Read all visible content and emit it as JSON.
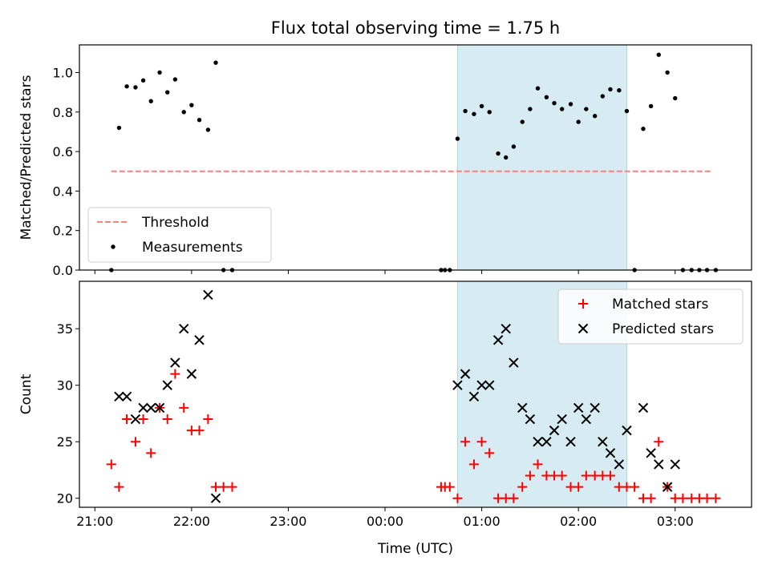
{
  "chart_data": {
    "title": "Flux total observing time = 1.75 h",
    "x_axis": {
      "label": "Time (UTC)",
      "unit": "hours after 21:00 UTC",
      "range": [
        -0.16,
        6.79
      ],
      "ticks": [
        {
          "value": 0,
          "label": "21:00"
        },
        {
          "value": 1,
          "label": "22:00"
        },
        {
          "value": 2,
          "label": "23:00"
        },
        {
          "value": 3,
          "label": "00:00"
        },
        {
          "value": 4,
          "label": "01:00"
        },
        {
          "value": 5,
          "label": "02:00"
        },
        {
          "value": 6,
          "label": "03:00"
        }
      ]
    },
    "shaded_interval": {
      "x": [
        3.75,
        5.5
      ],
      "color": "#add8e6"
    },
    "panels": [
      {
        "type": "scatter",
        "ylabel": "Matched/Predicted stars",
        "ylim": [
          0,
          1.14
        ],
        "yticks": [
          {
            "value": 0.0,
            "label": "0.0"
          },
          {
            "value": 0.2,
            "label": "0.2"
          },
          {
            "value": 0.4,
            "label": "0.4"
          },
          {
            "value": 0.6,
            "label": "0.6"
          },
          {
            "value": 0.8,
            "label": "0.8"
          },
          {
            "value": 1.0,
            "label": "1.0"
          }
        ],
        "legend": {
          "position": "lower-left",
          "entries": [
            {
              "label": "Threshold",
              "style": "dashed-line",
              "color": "#ff7f7f"
            },
            {
              "label": "Measurements",
              "style": "dot",
              "color": "#000000"
            }
          ]
        },
        "threshold": {
          "name": "Threshold",
          "y": 0.5,
          "x": [
            0.17,
            6.38
          ],
          "color": "#ff7f7f"
        },
        "series": [
          {
            "name": "Measurements",
            "marker": "dot",
            "color": "#000000",
            "points": [
              [
                0.17,
                0.0
              ],
              [
                0.25,
                0.72
              ],
              [
                0.33,
                0.93
              ],
              [
                0.42,
                0.925
              ],
              [
                0.5,
                0.96
              ],
              [
                0.58,
                0.855
              ],
              [
                0.67,
                1.0
              ],
              [
                0.75,
                0.9
              ],
              [
                0.83,
                0.965
              ],
              [
                0.92,
                0.8
              ],
              [
                1.0,
                0.835
              ],
              [
                1.08,
                0.76
              ],
              [
                1.17,
                0.71
              ],
              [
                1.25,
                1.05
              ],
              [
                1.33,
                0.0
              ],
              [
                1.42,
                0.0
              ],
              [
                3.58,
                0.0
              ],
              [
                3.62,
                0.0
              ],
              [
                3.67,
                0.0
              ],
              [
                3.75,
                0.665
              ],
              [
                3.83,
                0.805
              ],
              [
                3.92,
                0.79
              ],
              [
                4.0,
                0.83
              ],
              [
                4.08,
                0.8
              ],
              [
                4.17,
                0.59
              ],
              [
                4.25,
                0.57
              ],
              [
                4.33,
                0.625
              ],
              [
                4.42,
                0.75
              ],
              [
                4.5,
                0.815
              ],
              [
                4.58,
                0.92
              ],
              [
                4.67,
                0.875
              ],
              [
                4.75,
                0.845
              ],
              [
                4.83,
                0.815
              ],
              [
                4.92,
                0.84
              ],
              [
                5.0,
                0.75
              ],
              [
                5.08,
                0.815
              ],
              [
                5.17,
                0.78
              ],
              [
                5.25,
                0.88
              ],
              [
                5.33,
                0.915
              ],
              [
                5.42,
                0.91
              ],
              [
                5.5,
                0.805
              ],
              [
                5.58,
                0.0
              ],
              [
                5.67,
                0.715
              ],
              [
                5.75,
                0.83
              ],
              [
                5.83,
                1.09
              ],
              [
                5.92,
                1.0
              ],
              [
                6.0,
                0.87
              ],
              [
                6.08,
                0.0
              ],
              [
                6.17,
                0.0
              ],
              [
                6.25,
                0.0
              ],
              [
                6.33,
                0.0
              ],
              [
                6.42,
                0.0
              ]
            ]
          }
        ]
      },
      {
        "type": "scatter",
        "ylabel": "Count",
        "ylim": [
          19.2,
          39.2
        ],
        "yticks": [
          {
            "value": 20,
            "label": "20"
          },
          {
            "value": 25,
            "label": "25"
          },
          {
            "value": 30,
            "label": "30"
          },
          {
            "value": 35,
            "label": "35"
          }
        ],
        "legend": {
          "position": "upper-right",
          "entries": [
            {
              "label": "Matched stars",
              "style": "plus",
              "color": "#ff0000"
            },
            {
              "label": "Predicted stars",
              "style": "cross",
              "color": "#000000"
            }
          ]
        },
        "series": [
          {
            "name": "Matched stars",
            "marker": "plus",
            "color": "#ff0000",
            "points": [
              [
                0.17,
                23
              ],
              [
                0.25,
                21
              ],
              [
                0.33,
                27
              ],
              [
                0.42,
                25
              ],
              [
                0.5,
                27
              ],
              [
                0.58,
                24
              ],
              [
                0.67,
                28
              ],
              [
                0.75,
                27
              ],
              [
                0.83,
                31
              ],
              [
                0.92,
                28
              ],
              [
                1.0,
                26
              ],
              [
                1.08,
                26
              ],
              [
                1.17,
                27
              ],
              [
                1.25,
                21
              ],
              [
                1.33,
                21
              ],
              [
                1.42,
                21
              ],
              [
                3.58,
                21
              ],
              [
                3.62,
                21
              ],
              [
                3.67,
                21
              ],
              [
                3.75,
                20
              ],
              [
                3.83,
                25
              ],
              [
                3.92,
                23
              ],
              [
                4.0,
                25
              ],
              [
                4.08,
                24
              ],
              [
                4.17,
                20
              ],
              [
                4.25,
                20
              ],
              [
                4.33,
                20
              ],
              [
                4.42,
                21
              ],
              [
                4.5,
                22
              ],
              [
                4.58,
                23
              ],
              [
                4.67,
                22
              ],
              [
                4.75,
                22
              ],
              [
                4.83,
                22
              ],
              [
                4.92,
                21
              ],
              [
                5.0,
                21
              ],
              [
                5.08,
                22
              ],
              [
                5.17,
                22
              ],
              [
                5.25,
                22
              ],
              [
                5.33,
                22
              ],
              [
                5.42,
                21
              ],
              [
                5.5,
                21
              ],
              [
                5.58,
                21
              ],
              [
                5.67,
                20
              ],
              [
                5.75,
                20
              ],
              [
                5.83,
                25
              ],
              [
                5.92,
                21
              ],
              [
                6.0,
                20
              ],
              [
                6.08,
                20
              ],
              [
                6.17,
                20
              ],
              [
                6.25,
                20
              ],
              [
                6.33,
                20
              ],
              [
                6.42,
                20
              ]
            ]
          },
          {
            "name": "Predicted stars",
            "marker": "cross",
            "color": "#000000",
            "points": [
              [
                0.25,
                29
              ],
              [
                0.33,
                29
              ],
              [
                0.42,
                27
              ],
              [
                0.5,
                28
              ],
              [
                0.58,
                28
              ],
              [
                0.67,
                28
              ],
              [
                0.75,
                30
              ],
              [
                0.83,
                32
              ],
              [
                0.92,
                35
              ],
              [
                1.0,
                31
              ],
              [
                1.08,
                34
              ],
              [
                1.17,
                38
              ],
              [
                1.25,
                20
              ],
              [
                3.75,
                30
              ],
              [
                3.83,
                31
              ],
              [
                3.92,
                29
              ],
              [
                4.0,
                30
              ],
              [
                4.08,
                30
              ],
              [
                4.17,
                34
              ],
              [
                4.25,
                35
              ],
              [
                4.33,
                32
              ],
              [
                4.42,
                28
              ],
              [
                4.5,
                27
              ],
              [
                4.58,
                25
              ],
              [
                4.67,
                25
              ],
              [
                4.75,
                26
              ],
              [
                4.83,
                27
              ],
              [
                4.92,
                25
              ],
              [
                5.0,
                28
              ],
              [
                5.08,
                27
              ],
              [
                5.17,
                28
              ],
              [
                5.25,
                25
              ],
              [
                5.33,
                24
              ],
              [
                5.42,
                23
              ],
              [
                5.5,
                26
              ],
              [
                5.67,
                28
              ],
              [
                5.75,
                24
              ],
              [
                5.83,
                23
              ],
              [
                5.92,
                21
              ],
              [
                6.0,
                23
              ]
            ]
          }
        ]
      }
    ]
  }
}
